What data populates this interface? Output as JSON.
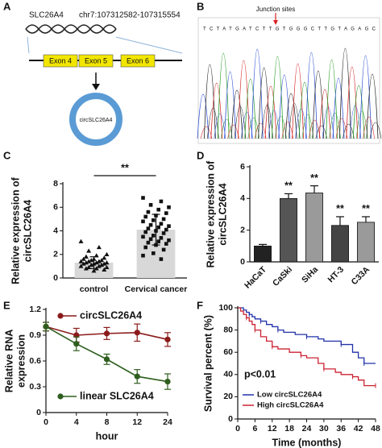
{
  "panel_labels": [
    "A",
    "B",
    "C",
    "D",
    "E",
    "F"
  ],
  "diagram": {
    "gene": "SLC26A4",
    "locus": "chr7:107312582-107315554",
    "exons": [
      "Exon 4",
      "Exon 5",
      "Exon 6"
    ],
    "circ_label": "circSLC26A4"
  },
  "sequencing": {
    "annotation": "Junction sites",
    "sequence": "TCTATGATCTTGTGGGCTTGTAGAGC"
  },
  "chart_data": [
    {
      "type": "bar",
      "categories": [
        "control",
        "Cervical cancer"
      ],
      "values": [
        1.3,
        4.1
      ],
      "errors": [
        0.5,
        1.3
      ],
      "error_direction": "both",
      "colors": [
        "#d8d8d8",
        "#d8d8d8"
      ],
      "points": [
        [
          3.1,
          2.6,
          2.3,
          2.0,
          1.9,
          1.8,
          1.7,
          1.6,
          1.6,
          1.5,
          1.5,
          1.4,
          1.4,
          1.4,
          1.3,
          1.3,
          1.3,
          1.2,
          1.2,
          1.2,
          1.1,
          1.1,
          1.0,
          1.0,
          0.9,
          0.9,
          0.8,
          0.8,
          0.7,
          0.6
        ],
        [
          6.8,
          6.5,
          6.2,
          6.0,
          5.8,
          5.6,
          5.5,
          5.3,
          5.2,
          5.0,
          4.9,
          4.8,
          4.6,
          4.5,
          4.4,
          4.3,
          4.2,
          4.1,
          4.0,
          3.9,
          3.8,
          3.6,
          3.5,
          3.4,
          3.3,
          3.2,
          3.1,
          3.0,
          2.9,
          2.8,
          2.6,
          2.4,
          2.1,
          1.9,
          1.6
        ]
      ],
      "point_shapes": [
        "triangle",
        "square"
      ],
      "point_color": "#111111",
      "annotation": "**",
      "ylabel": [
        "Relative expression of",
        "circSLC26A4"
      ],
      "ylim": [
        0,
        8
      ],
      "yticks": [
        0,
        2,
        4,
        6,
        8
      ],
      "xtick_rotation": 0
    },
    {
      "type": "bar",
      "categories": [
        "HaCaT",
        "CaSki",
        "SiHa",
        "HT-3",
        "C33A"
      ],
      "values": [
        1.0,
        4.0,
        4.35,
        2.3,
        2.5
      ],
      "errors": [
        0.1,
        0.3,
        0.45,
        0.55,
        0.35
      ],
      "error_direction": "up",
      "colors": [
        "#222222",
        "#555555",
        "#9a9a9a",
        "#444444",
        "#9a9a9a"
      ],
      "annotations": [
        null,
        "**",
        "**",
        "**",
        "**"
      ],
      "ylabel": [
        "Relative expression of",
        "circSLC26A4"
      ],
      "ylim": [
        0,
        6
      ],
      "yticks": [
        0,
        2,
        4,
        6
      ],
      "xtick_rotation": -45
    },
    {
      "type": "line",
      "categories": [
        "0",
        "4",
        "8",
        "12",
        "24"
      ],
      "xlabel": "hour",
      "ylabel": [
        "Relative RNA",
        "expression"
      ],
      "series": [
        {
          "name": "circSLC26A4",
          "color": "#8b1a1a",
          "values": [
            1.0,
            0.9,
            0.92,
            0.93,
            0.85
          ],
          "errors": [
            0.05,
            0.08,
            0.07,
            0.1,
            0.08
          ]
        },
        {
          "name": "linear SLC26A4",
          "color": "#2e5e1e",
          "values": [
            1.0,
            0.8,
            0.62,
            0.42,
            0.36
          ],
          "errors": [
            0.05,
            0.08,
            0.06,
            0.08,
            0.09
          ]
        }
      ],
      "ylim": [
        0,
        1.2
      ],
      "yticks": [
        0,
        0.3,
        0.6,
        0.9,
        1.2
      ]
    },
    {
      "type": "step",
      "xlabel": "Time (months)",
      "ylabel": [
        "Survival percent (%)"
      ],
      "annotation": "p<0.01",
      "legend": "lower left",
      "series": [
        {
          "name": "Low circSLC26A4",
          "color": "#2233aa",
          "x": [
            0,
            2,
            3,
            4,
            5,
            6,
            8,
            10,
            12,
            14,
            16,
            20,
            24,
            28,
            30,
            36,
            40,
            42,
            44,
            48
          ],
          "values": [
            100,
            98,
            96,
            94,
            92,
            90,
            88,
            85,
            83,
            80,
            78,
            76,
            74,
            72,
            70,
            67,
            60,
            55,
            50,
            50
          ]
        },
        {
          "name": "High circSLC26A4",
          "color": "#cc2233",
          "x": [
            0,
            1,
            2,
            3,
            4,
            5,
            6,
            8,
            10,
            12,
            14,
            18,
            22,
            24,
            28,
            30,
            34,
            36,
            40,
            42,
            44,
            48
          ],
          "values": [
            100,
            97,
            94,
            91,
            88,
            85,
            80,
            74,
            70,
            65,
            63,
            60,
            57,
            55,
            50,
            45,
            42,
            40,
            38,
            35,
            30,
            30
          ]
        }
      ],
      "xlim": [
        0,
        48
      ],
      "xticks": [
        0,
        6,
        12,
        18,
        24,
        30,
        36,
        42,
        48
      ],
      "ylim": [
        0,
        100
      ],
      "yticks": [
        0,
        20,
        40,
        60,
        80,
        100
      ]
    }
  ]
}
